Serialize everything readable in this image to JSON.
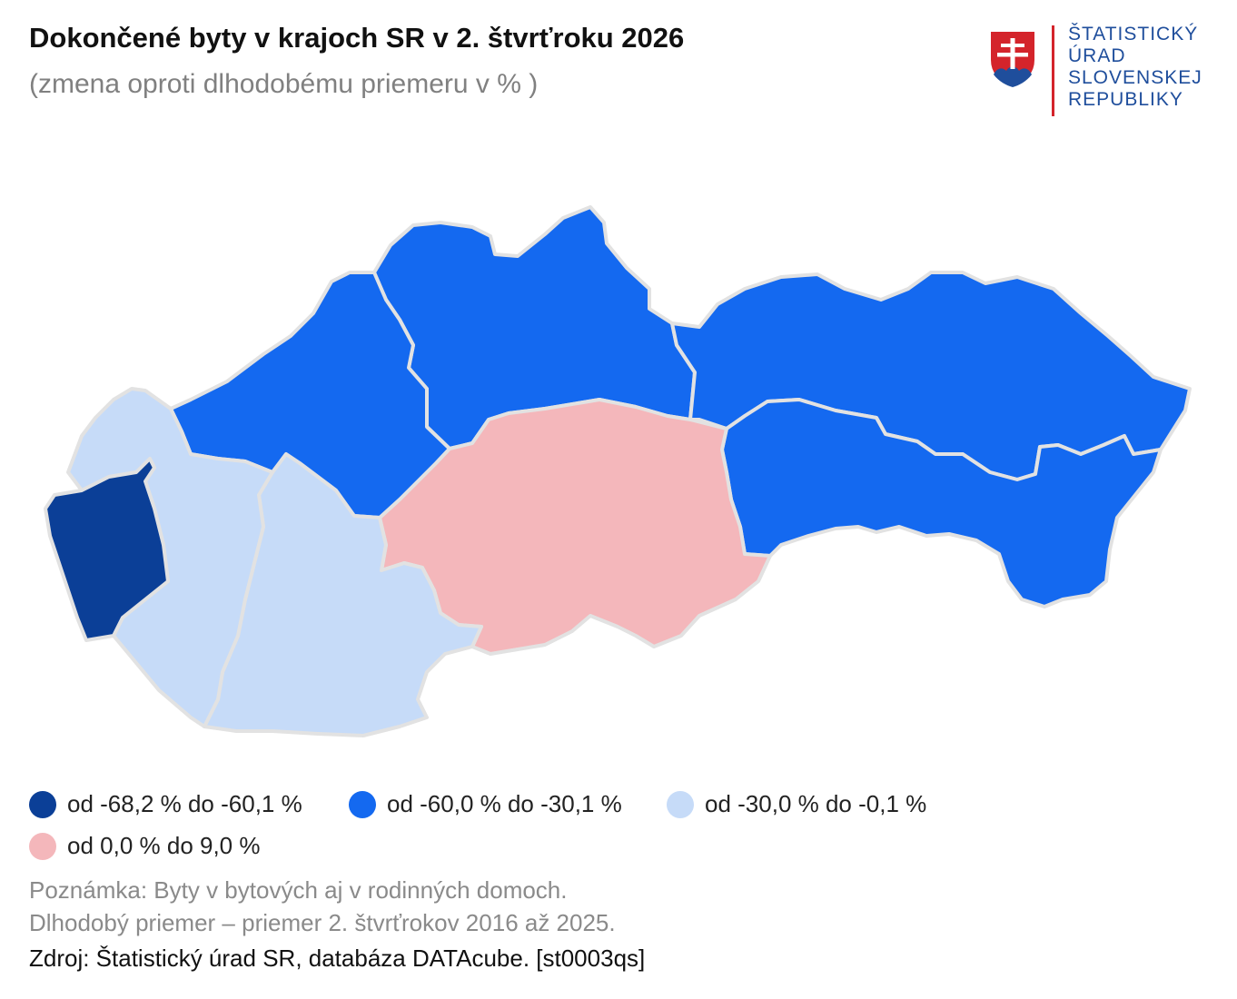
{
  "title": "Dokončené byty v krajoch SR v 2. štvrťroku 2026",
  "subtitle": "(zmena oproti dlhodobému priemeru v % )",
  "logo": {
    "lines": [
      "ŠTATISTICKÝ",
      "ÚRAD",
      "SLOVENSKEJ",
      "REPUBLIKY"
    ],
    "icon": "slovak-coat-of-arms-icon"
  },
  "colors": {
    "dark_blue": "#0b3f97",
    "blue": "#1469f0",
    "light_blue": "#c6dbf8",
    "pink": "#f4b7bb",
    "border": "#e2e2e2"
  },
  "legend": [
    {
      "label": "od -68,2 % do -60,1 %",
      "color": "#0b3f97"
    },
    {
      "label": "od -60,0 % do -30,1 %",
      "color": "#1469f0"
    },
    {
      "label": "od -30,0 % do -0,1 %",
      "color": "#c6dbf8"
    },
    {
      "label": "od 0,0 % do 9,0 %",
      "color": "#f4b7bb"
    }
  ],
  "note": {
    "line1": "Poznámka: Byty v bytových aj v rodinných domoch.",
    "line2": "Dlhodobý priemer – priemer 2. štvrťrokov 2016 až 2025."
  },
  "source": "Zdroj: Štatistický úrad SR, databáza DATAcube. [st0003qs]"
}
